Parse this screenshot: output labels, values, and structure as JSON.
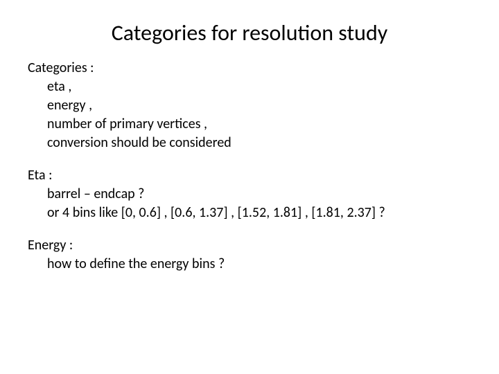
{
  "title": "Categories for resolution study",
  "sections": {
    "categories": {
      "header": "Categories :",
      "items": [
        "eta ,",
        "energy ,",
        "number of primary vertices ,",
        "conversion should be considered"
      ]
    },
    "eta": {
      "header": "Eta :",
      "items": [
        "barrel – endcap  ?",
        "or  4 bins like [0, 0.6]  , [0.6, 1.37] , [1.52, 1.81] , [1.81, 2.37]  ?"
      ]
    },
    "energy": {
      "header": "Energy :",
      "items": [
        "how to define the energy bins ?"
      ]
    }
  },
  "styling": {
    "background_color": "#ffffff",
    "text_color": "#000000",
    "title_fontsize": 32,
    "body_fontsize": 20,
    "font_family": "Calibri"
  }
}
